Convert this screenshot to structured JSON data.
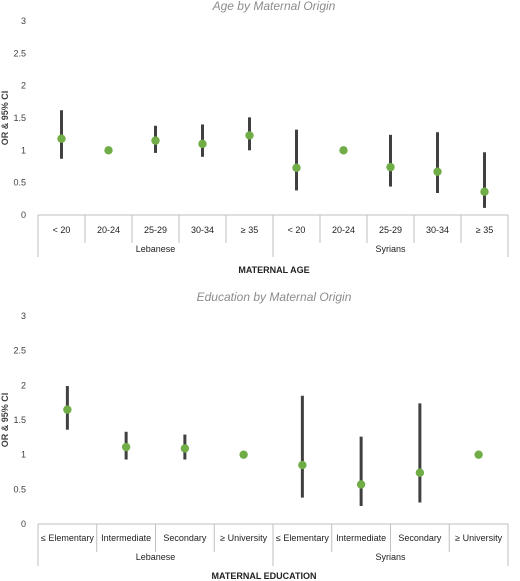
{
  "chart_data": [
    {
      "type": "scatter",
      "title": "Age by Maternal Origin",
      "ylabel": "OR & 95% CI",
      "xlabel": "MATERNAL AGE",
      "ylim": [
        0,
        3
      ],
      "yticks": [
        "0",
        "0.5",
        "1",
        "1.5",
        "2",
        "2.5",
        "3"
      ],
      "categories": [
        "< 20",
        "20-24",
        "25-29",
        "30-34",
        "≥ 35",
        "< 20",
        "20-24",
        "25-29",
        "30-34",
        "≥ 35"
      ],
      "groups": [
        {
          "label": "Lebanese",
          "count": 5
        },
        {
          "label": "Syrians",
          "count": 5
        }
      ],
      "values": [
        1.18,
        1.0,
        1.15,
        1.1,
        1.23,
        0.73,
        1.0,
        0.74,
        0.67,
        0.36
      ],
      "ci_low": [
        0.87,
        null,
        0.96,
        0.9,
        1.0,
        0.38,
        null,
        0.44,
        0.34,
        0.11
      ],
      "ci_high": [
        1.62,
        null,
        1.38,
        1.4,
        1.51,
        1.32,
        null,
        1.24,
        1.28,
        0.97
      ],
      "point_color": "#70ad47",
      "ci_color": "#404040",
      "grid": false
    },
    {
      "type": "scatter",
      "title": "Education by Maternal Origin",
      "ylabel": "OR & 95% CI",
      "xlabel": "MATERNAL EDUCATION",
      "ylim": [
        0,
        3
      ],
      "yticks": [
        "0",
        "0.5",
        "1",
        "1.5",
        "2",
        "2.5",
        "3"
      ],
      "categories": [
        "≤ Elementary",
        "Intermediate",
        "Secondary",
        "≥ University",
        "≤ Elementary",
        "Intermediate",
        "Secondary",
        "≥ University"
      ],
      "groups": [
        {
          "label": "Lebanese",
          "count": 4
        },
        {
          "label": "Syrians",
          "count": 4
        }
      ],
      "values": [
        1.65,
        1.11,
        1.09,
        1.0,
        0.85,
        0.57,
        0.74,
        1.0
      ],
      "ci_low": [
        1.36,
        0.93,
        0.93,
        null,
        0.38,
        0.26,
        0.31,
        null
      ],
      "ci_high": [
        1.99,
        1.33,
        1.29,
        null,
        1.85,
        1.26,
        1.74,
        null
      ],
      "point_color": "#70ad47",
      "ci_color": "#404040",
      "grid": false
    }
  ]
}
